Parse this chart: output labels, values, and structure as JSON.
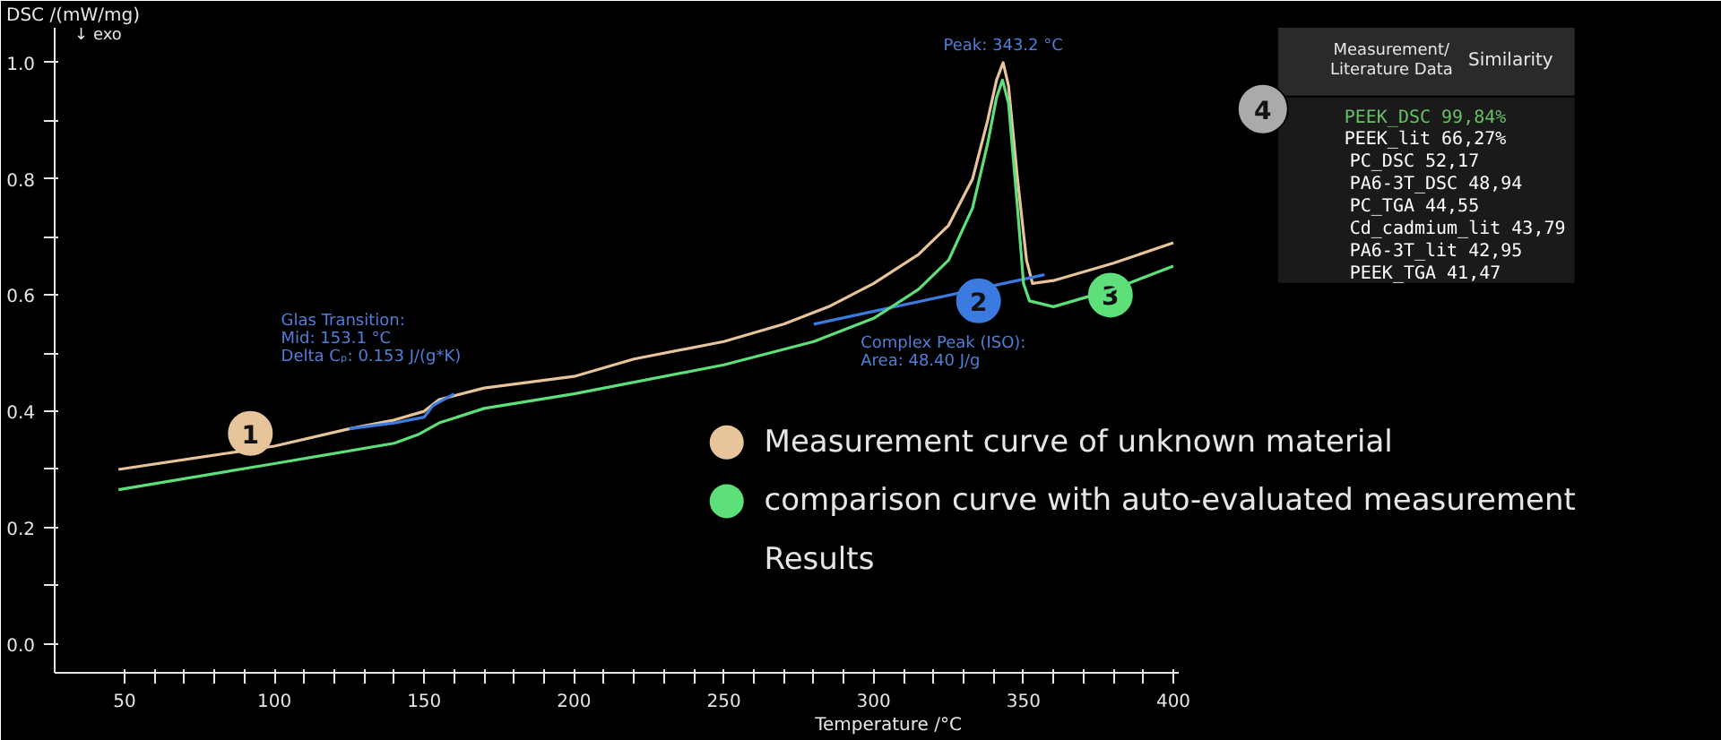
{
  "chart_data": [
    {
      "type": "line",
      "xlabel": "Temperature /°C",
      "ylabel": "DSC /(mW/mg)",
      "xlim": [
        26.7,
        402
      ],
      "ylim": [
        -0.05,
        1.06
      ],
      "xticks": [
        50,
        {
          "value": 60,
          "label": null
        },
        {
          "value": 70,
          "label": null
        },
        {
          "value": 80,
          "label": null
        },
        {
          "value": 90,
          "label": null
        },
        100,
        {
          "value": 110,
          "label": null
        },
        {
          "value": 120,
          "label": null
        },
        {
          "value": 130,
          "label": null
        },
        {
          "value": 140,
          "label": null
        },
        150,
        {
          "value": 160,
          "label": null
        },
        {
          "value": 170,
          "label": null
        },
        {
          "value": 180,
          "label": null
        },
        {
          "value": 190,
          "label": null
        },
        200,
        {
          "value": 210,
          "label": null
        },
        {
          "value": 220,
          "label": null
        },
        {
          "value": 230,
          "label": null
        },
        {
          "value": 240,
          "label": null
        },
        250,
        {
          "value": 260,
          "label": null
        },
        {
          "value": 270,
          "label": null
        },
        {
          "value": 280,
          "label": null
        },
        {
          "value": 290,
          "label": null
        },
        300,
        {
          "value": 310,
          "label": null
        },
        {
          "value": 320,
          "label": null
        },
        {
          "value": 330,
          "label": null
        },
        {
          "value": 340,
          "label": null
        },
        350,
        {
          "value": 360,
          "label": null
        },
        {
          "value": 370,
          "label": null
        },
        {
          "value": 380,
          "label": null
        },
        {
          "value": 390,
          "label": null
        },
        400
      ],
      "yticks": [
        {
          "value": 0,
          "label": "0.0"
        },
        {
          "value": 0.1,
          "label": null
        },
        0.2,
        {
          "value": 0.3,
          "label": null
        },
        0.4,
        {
          "value": 0.5,
          "label": null
        },
        0.6,
        {
          "value": 0.7,
          "label": null
        },
        0.8,
        {
          "value": 0.9,
          "label": null
        },
        {
          "value": 1,
          "label": "1.0"
        }
      ],
      "grid": false,
      "legend": "bottom right",
      "line_style": "solid",
      "marker": "none",
      "series": [
        {
          "name": "Measurement curve of unknown material",
          "color": "#e8c49a",
          "x": [
            48,
            100,
            125,
            140,
            150,
            155,
            170,
            200,
            220,
            250,
            270,
            285,
            300,
            315,
            325,
            333,
            338,
            341,
            343.2,
            345,
            348,
            351,
            353,
            360,
            380,
            400
          ],
          "values": [
            0.3,
            0.34,
            0.37,
            0.385,
            0.4,
            0.42,
            0.44,
            0.46,
            0.49,
            0.52,
            0.55,
            0.58,
            0.62,
            0.67,
            0.72,
            0.8,
            0.9,
            0.97,
            1.0,
            0.96,
            0.8,
            0.66,
            0.62,
            0.625,
            0.655,
            0.69
          ]
        },
        {
          "color": "#3b7be0",
          "x": [
            125,
            140,
            150,
            153,
            160,
            200,
            280,
            357
          ],
          "values": [
            0.37,
            0.38,
            0.39,
            0.41,
            0.43,
            null,
            0.55,
            0.635
          ]
        },
        {
          "name": "comparison curve with auto-evaluated measurement",
          "color": "#5de07a",
          "x": [
            48,
            100,
            140,
            148,
            155,
            170,
            200,
            250,
            280,
            300,
            315,
            325,
            333,
            338,
            341,
            343,
            345,
            348,
            350,
            352,
            360,
            380,
            400
          ],
          "values": [
            0.265,
            0.31,
            0.345,
            0.36,
            0.38,
            0.405,
            0.43,
            0.48,
            0.52,
            0.56,
            0.61,
            0.66,
            0.75,
            0.86,
            0.94,
            0.97,
            0.93,
            0.75,
            0.62,
            0.59,
            0.58,
            0.61,
            0.65
          ]
        }
      ],
      "annotations": [
        "↓ exo",
        "Results",
        {
          "text": "1",
          "x": 92,
          "y": 0.362
        },
        {
          "text": "2",
          "x": 335,
          "y": 0.59
        },
        {
          "text": "3",
          "x": 379,
          "y": 0.6
        },
        {
          "text": "Peak: 343.2 °C",
          "x": 343.2,
          "y": 1.0
        },
        {
          "text": "Glas Transition:\nMid: 153.1 °C\nDelta Cₚ: 0.153 J/(g*K)",
          "x": 153.1,
          "y": 0.41
        },
        "Complex Peak (ISO):\nArea: 48.40 J/g"
      ]
    },
    {
      "type": "other",
      "annotations": [
        "4",
        "Measurement/\nLiterature Data",
        "Similarity",
        "PEEK_DSC",
        "99,84%",
        "PEEK_lit",
        "66,27%",
        "PC_DSC",
        "52,17",
        "PA6-3T_DSC",
        "48,94",
        "PC_TGA",
        "44,55",
        "Cd_cadmium_lit",
        "43,79",
        "PA6-3T_lit",
        "42,95",
        "PEEK_TGA",
        "41,47"
      ],
      "colors": [
        "#6abf69",
        "#ffffff",
        "#ffffff",
        "#ffffff",
        "#ffffff",
        "#ffffff",
        "#ffffff",
        "#ffffff"
      ]
    }
  ]
}
